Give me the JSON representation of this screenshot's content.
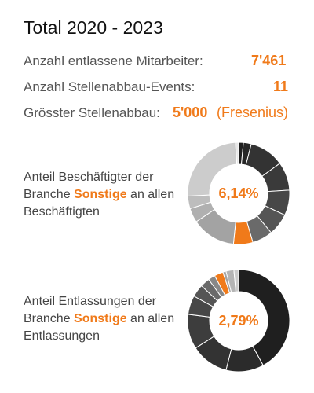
{
  "title": "Total 2020 - 2023",
  "stats": {
    "employees_label": "Anzahl entlassene Mitarbeiter:",
    "employees_value": "7'461",
    "events_label": "Anzahl Stellenabbau-Events:",
    "events_value": "11",
    "largest_label": "Grösster Stellenabbau:",
    "largest_value": "5'000",
    "largest_company": "(Fresenius)"
  },
  "share_employed": {
    "text_before": "Anteil Beschäftigter der Branche ",
    "highlight": "Sonstige",
    "text_after": " an allen Beschäftigten",
    "percent": "6,14%"
  },
  "share_layoffs": {
    "text_before": "Anteil Entlassungen der Branche ",
    "highlight": "Sonstige",
    "text_after": " an allen Entlassungen",
    "percent": "2,79%"
  },
  "chart_data": [
    {
      "type": "pie",
      "highlight_color": "#f07a1a",
      "slices": [
        {
          "value": 1.5,
          "color": "#1f1f1f"
        },
        {
          "value": 2.5,
          "color": "#262626"
        },
        {
          "value": 11,
          "color": "#333333"
        },
        {
          "value": 9,
          "color": "#3a3a3a"
        },
        {
          "value": 8,
          "color": "#474747"
        },
        {
          "value": 7,
          "color": "#555555"
        },
        {
          "value": 6.5,
          "color": "#6a6a6a"
        },
        {
          "value": 6.14,
          "color": "#f07a1a",
          "highlight": true
        },
        {
          "value": 14,
          "color": "#a3a3a3"
        },
        {
          "value": 4.5,
          "color": "#b0b0b0"
        },
        {
          "value": 4,
          "color": "#bdbdbd"
        },
        {
          "value": 24.86,
          "color": "#cccccc"
        },
        {
          "value": 1,
          "color": "#e8e8e8"
        }
      ]
    },
    {
      "type": "pie",
      "highlight_color": "#f07a1a",
      "slices": [
        {
          "value": 42,
          "color": "#1f1f1f"
        },
        {
          "value": 12,
          "color": "#2b2b2b"
        },
        {
          "value": 12,
          "color": "#333333"
        },
        {
          "value": 11,
          "color": "#3d3d3d"
        },
        {
          "value": 6,
          "color": "#474747"
        },
        {
          "value": 4,
          "color": "#555555"
        },
        {
          "value": 3,
          "color": "#6a6a6a"
        },
        {
          "value": 2.21,
          "color": "#888888"
        },
        {
          "value": 2.79,
          "color": "#f07a1a",
          "highlight": true
        },
        {
          "value": 1,
          "color": "#a3a3a3"
        },
        {
          "value": 2.5,
          "color": "#b5b5b5"
        },
        {
          "value": 1.5,
          "color": "#cccccc"
        }
      ]
    }
  ]
}
